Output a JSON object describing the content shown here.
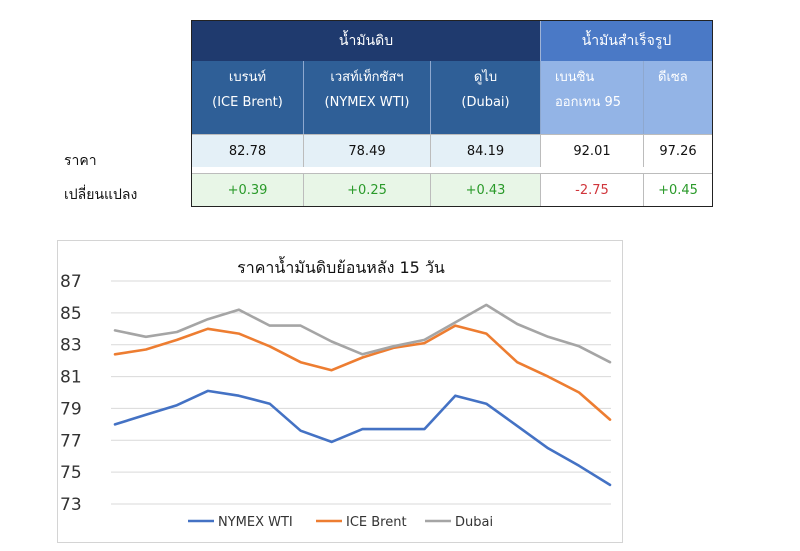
{
  "table": {
    "group_crude": "น้ำมันดิบ",
    "group_refined": "น้ำมันสำเร็จรูป",
    "columns": [
      {
        "line1": "เบรนท์",
        "line2": "(ICE Brent)"
      },
      {
        "line1": "เวสท์เท็กซัสฯ",
        "line2": "(NYMEX WTI)"
      },
      {
        "line1": "ดูไบ",
        "line2": "(Dubai)"
      },
      {
        "line1": "เบนซิน",
        "line2": "ออกเทน 95"
      },
      {
        "line1": "ดีเซล",
        "line2": ""
      }
    ],
    "row_price_label": "ราคา",
    "row_change_label": "เปลี่ยนแปลง",
    "prices": [
      "82.78",
      "78.49",
      "84.19",
      "92.01",
      "97.26"
    ],
    "changes": [
      "+0.39",
      "+0.25",
      "+0.43",
      "-2.75",
      "+0.45"
    ],
    "colors": {
      "crude_header": "#1f3a6e",
      "refined_header": "#4a79c6",
      "positive": "#2a9a2a",
      "negative": "#d0353b"
    }
  },
  "chart_data": {
    "type": "line",
    "title": "ราคาน้ำมันดิบย้อนหลัง 15 วัน",
    "xlabel": "",
    "ylabel": "",
    "ylim": [
      73,
      87
    ],
    "yticks": [
      "87",
      "85",
      "83",
      "81",
      "79",
      "77",
      "75",
      "73"
    ],
    "x": [
      1,
      2,
      3,
      4,
      5,
      6,
      7,
      8,
      9,
      10,
      11,
      12,
      13,
      14,
      15,
      16,
      17
    ],
    "legend_position": "bottom",
    "grid": true,
    "series": [
      {
        "name": "NYMEX WTI",
        "color": "#4472c4",
        "values": [
          78.0,
          78.6,
          79.2,
          80.1,
          79.8,
          79.3,
          77.6,
          76.9,
          77.7,
          77.7,
          77.7,
          79.8,
          79.3,
          77.9,
          76.5,
          75.4,
          74.2
        ]
      },
      {
        "name": "ICE Brent",
        "color": "#ed7d31",
        "values": [
          82.4,
          82.7,
          83.3,
          84.0,
          83.7,
          82.9,
          81.9,
          81.4,
          82.2,
          82.8,
          83.1,
          84.2,
          83.7,
          81.9,
          81.0,
          80.0,
          78.3
        ]
      },
      {
        "name": "Dubai",
        "color": "#a5a5a5",
        "values": [
          83.9,
          83.5,
          83.8,
          84.6,
          85.2,
          84.2,
          84.2,
          83.2,
          82.4,
          82.9,
          83.3,
          84.4,
          85.5,
          84.3,
          83.5,
          82.9,
          81.9
        ]
      }
    ]
  }
}
